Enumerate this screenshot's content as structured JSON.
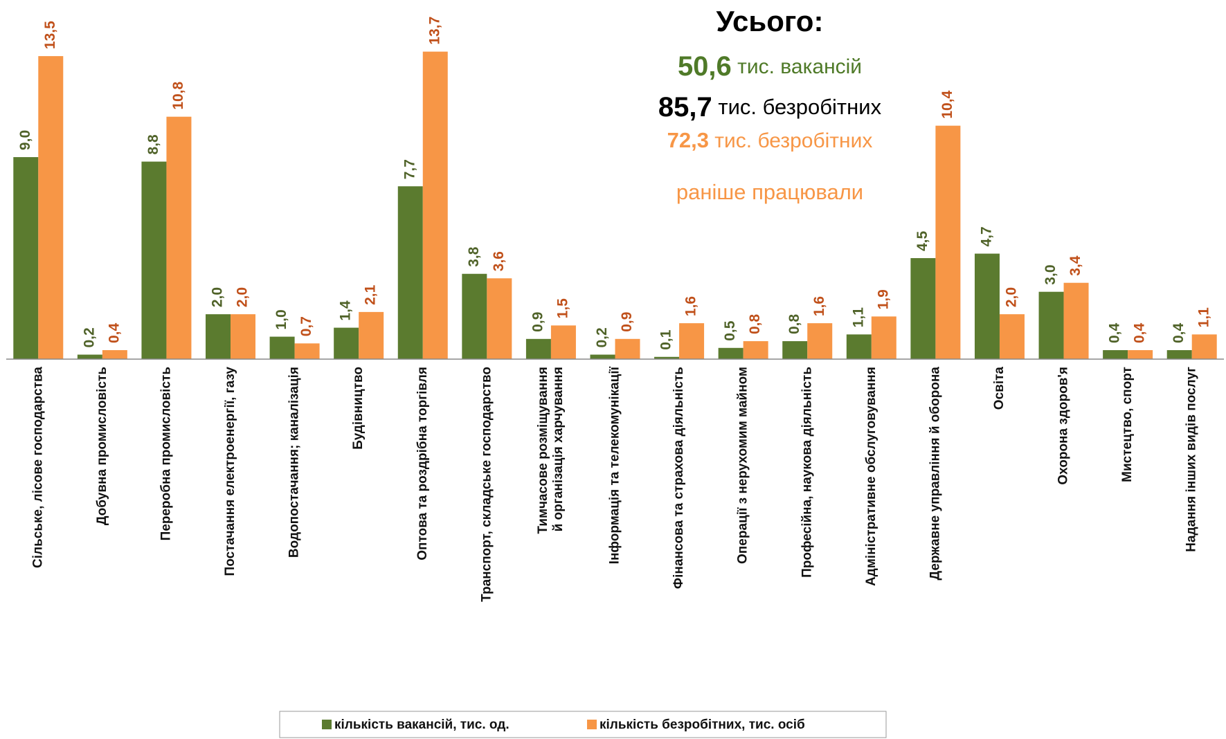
{
  "chart_data": {
    "type": "bar",
    "categories": [
      "Сільське, лісове господарства",
      "Добувна промисловість",
      "Переробна промисловість",
      "Постачання електроенергії, газу",
      "Водопостачання; каналізація",
      "Будівництво",
      "Оптова та роздрібна торгівля",
      "Транспорт, складське господарство",
      "Тимчасове розміщування\nй організація харчування",
      "Інформація та телекомунікації",
      "Фінансова та страхова діяльність",
      "Операції з нерухомим майном",
      "Професійна, наукова діяльність",
      "Адміністративне обслуговування",
      "Державне управління й оборона",
      "Освіта",
      "Охорона здоров'я",
      "Мистецтво, спорт",
      "Надання інших видів послуг"
    ],
    "series": [
      {
        "name": "кількість вакансій, тис. од.",
        "color": "#5b7b2f",
        "label_color": "#4f6228",
        "values": [
          9.0,
          0.2,
          8.8,
          2.0,
          1.0,
          1.4,
          7.7,
          3.8,
          0.9,
          0.2,
          0.1,
          0.5,
          0.8,
          1.1,
          4.5,
          4.7,
          3.0,
          0.4,
          0.4
        ],
        "value_labels": [
          "9,0",
          "0,2",
          "8,8",
          "2,0",
          "1,0",
          "1,4",
          "7,7",
          "3,8",
          "0,9",
          "0,2",
          "0,1",
          "0,5",
          "0,8",
          "1,1",
          "4,5",
          "4,7",
          "3,0",
          "0,4",
          "0,4"
        ]
      },
      {
        "name": "кількість безробітних, тис. осіб",
        "color": "#f79646",
        "label_color": "#c0501a",
        "values": [
          13.5,
          0.4,
          10.8,
          2.0,
          0.7,
          2.1,
          13.7,
          3.6,
          1.5,
          0.9,
          1.6,
          0.8,
          1.6,
          1.9,
          10.4,
          2.0,
          3.4,
          0.4,
          1.1
        ],
        "value_labels": [
          "13,5",
          "0,4",
          "10,8",
          "2,0",
          "0,7",
          "2,1",
          "13,7",
          "3,6",
          "1,5",
          "0,9",
          "1,6",
          "0,8",
          "1,6",
          "1,9",
          "10,4",
          "2,0",
          "3,4",
          "0,4",
          "1,1"
        ]
      }
    ],
    "ylim": [
      0,
      16
    ],
    "summary": {
      "title": "Усього:",
      "lines": [
        {
          "value": "50,6",
          "text": "тис. вакансій",
          "color": "#4f7a28"
        },
        {
          "value": "85,7",
          "text": "тис. безробітних",
          "color": "#000000"
        },
        {
          "value": "72,3",
          "text": "тис. безробітних",
          "color": "#f79646"
        }
      ],
      "last_line": "раніше працювали"
    },
    "legend": "bottom"
  }
}
